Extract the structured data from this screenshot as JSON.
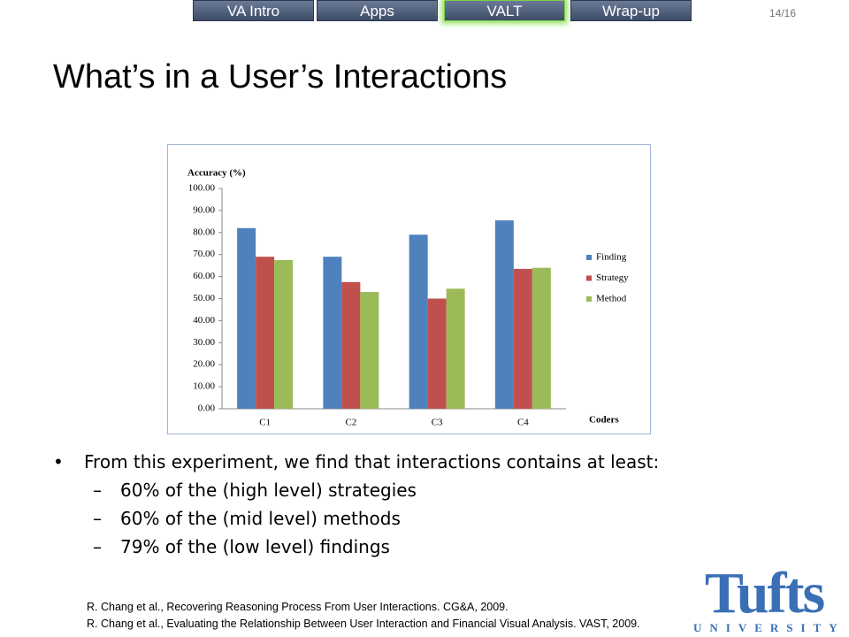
{
  "nav": [
    "VA Intro",
    "Apps",
    "VALT",
    "Wrap-up"
  ],
  "page_number": "14/16",
  "title": "What’s in a User’s Interactions",
  "chart_data": {
    "type": "bar",
    "title": "Accuracy (%)",
    "x_label": "Coders",
    "categories": [
      "C1",
      "C2",
      "C3",
      "C4"
    ],
    "series": [
      {
        "name": "Finding",
        "color": "#4f81bd",
        "values": [
          82,
          69,
          79,
          85.5
        ]
      },
      {
        "name": "Strategy",
        "color": "#c0504d",
        "values": [
          69,
          57.5,
          50,
          63.5
        ]
      },
      {
        "name": "Method",
        "color": "#9bbb59",
        "values": [
          67.5,
          53,
          54.5,
          64
        ]
      }
    ],
    "ylim": [
      0,
      100
    ],
    "yticks": [
      {
        "value": 0,
        "label": "0.00"
      },
      {
        "value": 10,
        "label": "10.00"
      },
      {
        "value": 20,
        "label": "20.00"
      },
      {
        "value": 30,
        "label": "30.00"
      },
      {
        "value": 40,
        "label": "40.00"
      },
      {
        "value": 50,
        "label": "50.00"
      },
      {
        "value": 60,
        "label": "60.00"
      },
      {
        "value": 70,
        "label": "70.00"
      },
      {
        "value": 80,
        "label": "80.00"
      },
      {
        "value": 90,
        "label": "90.00"
      },
      {
        "value": 100,
        "label": "100.00"
      }
    ],
    "grid": false,
    "legend": "right"
  },
  "bullets": [
    {
      "text": "From this experiment, we find that interactions contains at least:",
      "sub": [
        "60% of the (high level) strategies",
        "60% of the (mid level) methods",
        "79% of the (low level) findings"
      ]
    }
  ],
  "references": [
    "R. Chang et al., Recovering Reasoning  Process From User Interactions.  CG&A, 2009.",
    "R. Chang et al., Evaluating the Relationship Between User Interaction and Financial Visual Analysis. VAST, 2009."
  ],
  "logo": {
    "name": "Tufts",
    "subtitle": "UNIVERSITY"
  }
}
